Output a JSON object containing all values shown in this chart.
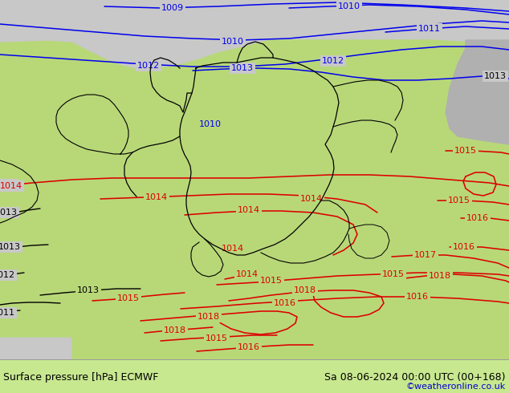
{
  "title_left": "Surface pressure [hPa] ECMWF",
  "title_right": "Sa 08-06-2024 00:00 UTC (00+168)",
  "credit": "©weatheronline.co.uk",
  "bg_green": "#b8d878",
  "bg_grey": "#c8c8c8",
  "bg_grey_dark": "#b0b0b0",
  "bg_footer": "#c8e890",
  "blue": "#0000ee",
  "red": "#dd0000",
  "black": "#000000",
  "lbl_fs": 8,
  "foot_fs": 9,
  "credit_color": "#0000cc"
}
